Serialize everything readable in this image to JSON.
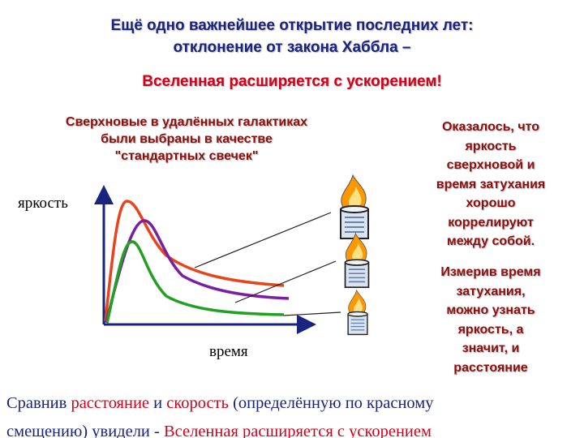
{
  "title": [
    "Ещё одно важнейшее открытие последних лет:",
    "отклонение от закона Хаббла –"
  ],
  "subtitle": "Вселенная расширяется с ускорением!",
  "left_text": [
    "Сверхновые в удалённых галактиках",
    "были выбраны в качестве",
    "\"стандартных свечек\""
  ],
  "right_text_1": [
    "Оказалось, что",
    "яркость",
    "сверхновой и",
    "время затухания",
    "хорошо",
    "коррелируют",
    "между собой."
  ],
  "right_text_2": [
    "Измерив время",
    "затухания,",
    "можно узнать",
    "яркость, а",
    "значит, и",
    "расстояние"
  ],
  "diagram": {
    "y_label": "яркость",
    "x_label": "время"
  },
  "conclusion": [
    "Сравнив ",
    "расстояние",
    " и ",
    "скорость",
    " (определённую  по красному",
    "смещению) увидели - ",
    "Вселенная расширяется с ускорением"
  ]
}
